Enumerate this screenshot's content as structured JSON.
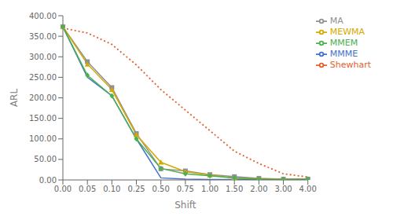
{
  "chart_data": {
    "type": "line",
    "xlabel": "Shift",
    "ylabel": "ARL",
    "categories": [
      "0.00",
      "0.05",
      "0.10",
      "0.25",
      "0.50",
      "0.75",
      "1.00",
      "1.50",
      "2.00",
      "3.00",
      "4.00"
    ],
    "series": [
      {
        "name": "Shewhart",
        "color": "#e06030",
        "line_style": "dotted",
        "marker": "none",
        "values": [
          370,
          358,
          330,
          280,
          220,
          170,
          120,
          70,
          40,
          15,
          7
        ]
      },
      {
        "name": "MA",
        "color": "#909090",
        "line_style": "solid",
        "marker": "square",
        "values": [
          373,
          288,
          225,
          113,
          27,
          22,
          13,
          8,
          4,
          2,
          2
        ]
      },
      {
        "name": "MEWMA",
        "color": "#d4aa00",
        "line_style": "solid",
        "marker": "triangle",
        "values": [
          373,
          282,
          220,
          110,
          43,
          20,
          12,
          5,
          3,
          2,
          2
        ]
      },
      {
        "name": "MMME",
        "color": "#4472c4",
        "line_style": "solid",
        "marker": "none",
        "values": [
          373,
          250,
          205,
          100,
          5,
          2,
          1,
          1,
          1,
          1,
          1
        ]
      },
      {
        "name": "MMEM",
        "color": "#4caf50",
        "line_style": "solid",
        "marker": "diamond",
        "values": [
          373,
          255,
          205,
          100,
          28,
          15,
          10,
          5,
          2,
          1,
          2
        ]
      }
    ],
    "ylim": [
      0,
      400
    ],
    "yticks": [
      {
        "value": 0,
        "label": "0.00"
      },
      {
        "value": 50,
        "label": "50.00"
      },
      {
        "value": 100,
        "label": "100.00"
      },
      {
        "value": 150,
        "label": "150.00"
      },
      {
        "value": 200,
        "label": "200.00"
      },
      {
        "value": 250,
        "label": "250.00"
      },
      {
        "value": 300,
        "label": "300.00"
      },
      {
        "value": 350,
        "label": "350.00"
      },
      {
        "value": 400,
        "label": "400.00"
      }
    ],
    "grid": false,
    "legend": "upper right"
  }
}
